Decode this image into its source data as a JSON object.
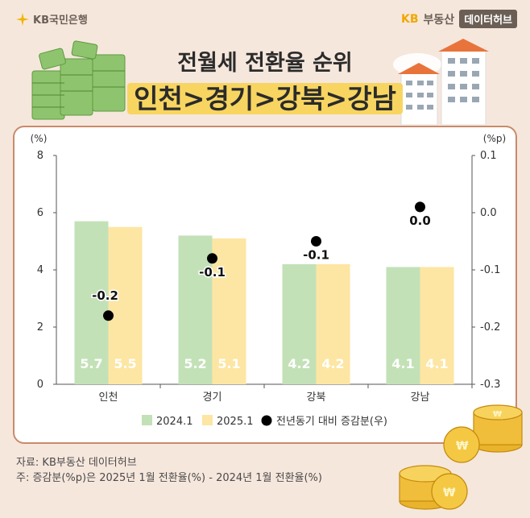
{
  "header": {
    "bank_name": "KB국민은행",
    "brand_kb": "KB",
    "brand_name": "부동산",
    "brand_badge": "데이터허브",
    "title_line1": "전월세 전환율 순위",
    "title_line2": "인천>경기>강북>강남"
  },
  "footer": {
    "source": "자료: KB부동산 데이터허브",
    "note": "주: 증감분(%p)은 2025년 1월 전환율(%) - 2024년 1월 전환율(%)"
  },
  "chart_data": {
    "type": "bar",
    "categories": [
      "인천",
      "경기",
      "강북",
      "강남"
    ],
    "series": [
      {
        "name": "2024.1",
        "values": [
          5.7,
          5.2,
          4.2,
          4.1
        ],
        "color": "#c3e1b7",
        "labels": [
          "5.7",
          "5.2",
          "4.2",
          "4.1"
        ]
      },
      {
        "name": "2025.1",
        "values": [
          5.5,
          5.1,
          4.2,
          4.1
        ],
        "color": "#fde6a3",
        "labels": [
          "5.5",
          "5.1",
          "4.2",
          "4.1"
        ]
      }
    ],
    "dot_series": {
      "name": "전년동기 대비 증감분(우)",
      "values": [
        -0.18,
        -0.08,
        -0.05,
        0.01
      ],
      "labels": [
        "-0.2",
        "-0.1",
        "-0.1",
        "0.0"
      ],
      "color": "#000000"
    },
    "left_axis": {
      "unit": "(%)",
      "ylim": [
        0,
        8
      ],
      "ticks": [
        "0",
        "2",
        "4",
        "6",
        "8"
      ]
    },
    "right_axis": {
      "unit": "(%p)",
      "ylim": [
        -0.3,
        0.1
      ],
      "ticks": [
        "-0.3",
        "-0.2",
        "-0.1",
        "0.0",
        "0.1"
      ]
    },
    "grid": false,
    "legend_position": "bottom"
  }
}
